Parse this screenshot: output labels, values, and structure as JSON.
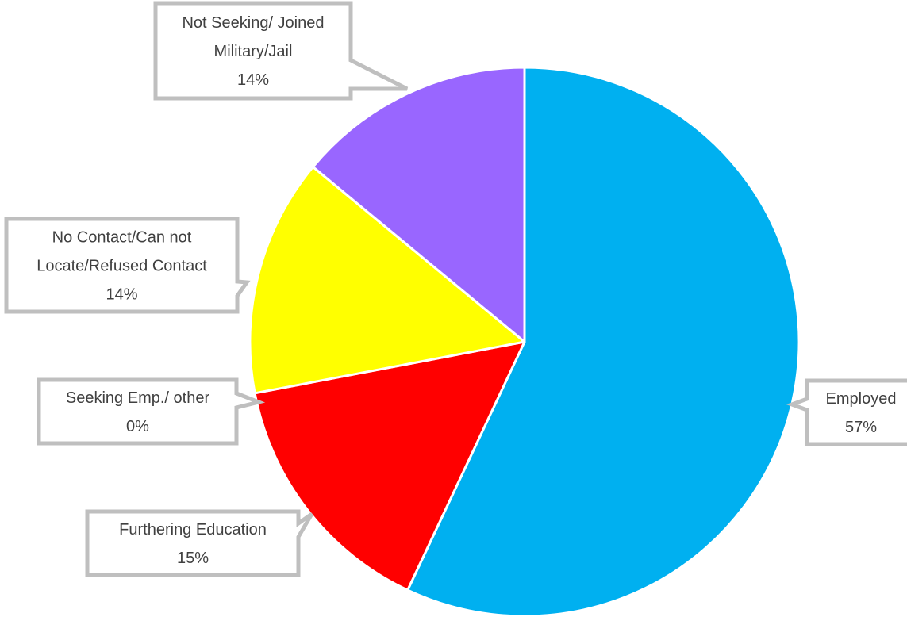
{
  "chart_data": {
    "type": "pie",
    "title": "",
    "start_angle_deg": 0,
    "direction": "clockwise",
    "slices": [
      {
        "label": "Employed",
        "value": 57,
        "value_label": "57%",
        "color": "#00B0F0"
      },
      {
        "label": "Furthering Education",
        "value": 15,
        "value_label": "15%",
        "color": "#FF0000"
      },
      {
        "label": "Seeking Emp./ other",
        "value": 0,
        "value_label": "0%",
        "color": "#C00000"
      },
      {
        "label": "No Contact/Can not Locate/Refused Contact",
        "value": 14,
        "value_label": "14%",
        "color": "#FFFF00"
      },
      {
        "label": "Not Seeking/ Joined Military/Jail",
        "value": 14,
        "value_label": "14%",
        "color": "#9966FF"
      }
    ],
    "legend": "none",
    "data_labels": "callouts"
  },
  "callouts": [
    {
      "lines": [
        "Employed",
        "57%"
      ]
    },
    {
      "lines": [
        "Furthering Education",
        "15%"
      ]
    },
    {
      "lines": [
        "Seeking Emp./ other",
        "0%"
      ]
    },
    {
      "lines": [
        "No Contact/Can not",
        "Locate/Refused Contact",
        "14%"
      ]
    },
    {
      "lines": [
        "Not Seeking/ Joined",
        "Military/Jail",
        "14%"
      ]
    }
  ],
  "style": {
    "callout_border": "#BFBFBF",
    "slice_stroke": "#FFFFFF"
  }
}
